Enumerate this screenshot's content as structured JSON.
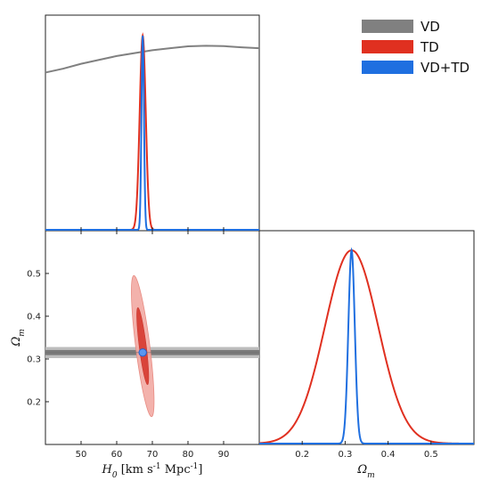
{
  "chart_data": {
    "type": "corner",
    "legend": [
      {
        "label": "VD",
        "color": "#808080"
      },
      {
        "label": "TD",
        "color": "#e03020"
      },
      {
        "label": "VD+TD",
        "color": "#1f6fe0"
      }
    ],
    "panels": {
      "h0_marginal": {
        "x_range": [
          40,
          100
        ],
        "series": [
          {
            "name": "VD",
            "color": "#808080",
            "x": [
              40,
              45,
              50,
              55,
              60,
              65,
              70,
              75,
              80,
              85,
              90,
              95,
              100
            ],
            "y": [
              0.81,
              0.83,
              0.855,
              0.875,
              0.895,
              0.91,
              0.925,
              0.935,
              0.945,
              0.948,
              0.946,
              0.94,
              0.935
            ]
          },
          {
            "name": "TD",
            "color": "#e03020",
            "type": "gaussian",
            "mean": 67.3,
            "sigma": 0.85,
            "peak": 1.0
          },
          {
            "name": "VD+TD",
            "color": "#1f6fe0",
            "type": "gaussian",
            "mean": 67.3,
            "sigma": 0.35,
            "peak": 1.0
          }
        ]
      },
      "om_marginal": {
        "x_range": [
          0.1,
          0.6
        ],
        "xticks": [
          0.2,
          0.3,
          0.4,
          0.5
        ],
        "xlabel": "Ω_m",
        "series": [
          {
            "name": "TD",
            "color": "#e03020",
            "type": "gaussian",
            "mean": 0.315,
            "sigma": 0.062,
            "peak": 1.0
          },
          {
            "name": "VD+TD",
            "color": "#1f6fe0",
            "type": "gaussian",
            "mean": 0.315,
            "sigma": 0.0075,
            "peak": 1.0
          }
        ]
      },
      "joint": {
        "x_range": [
          40,
          100
        ],
        "y_range": [
          0.1,
          0.6
        ],
        "xticks": [
          50,
          60,
          70,
          80,
          90
        ],
        "yticks": [
          0.2,
          0.3,
          0.4,
          0.5
        ],
        "xlabel": "H_0 [km s^-1 Mpc^-1]",
        "ylabel": "Ω_m",
        "vd_band": {
          "center": 0.315,
          "inner_half_width": 0.006,
          "outer_half_width": 0.013
        },
        "td_contours": {
          "center": [
            67.3,
            0.33
          ],
          "inner": {
            "h0_half": 1.0,
            "om_half": 0.09
          },
          "outer": {
            "h0_half": 2.0,
            "om_half": 0.165
          },
          "tilt_h0_per_om": -15
        },
        "combined_point": [
          67.3,
          0.315
        ]
      }
    }
  }
}
